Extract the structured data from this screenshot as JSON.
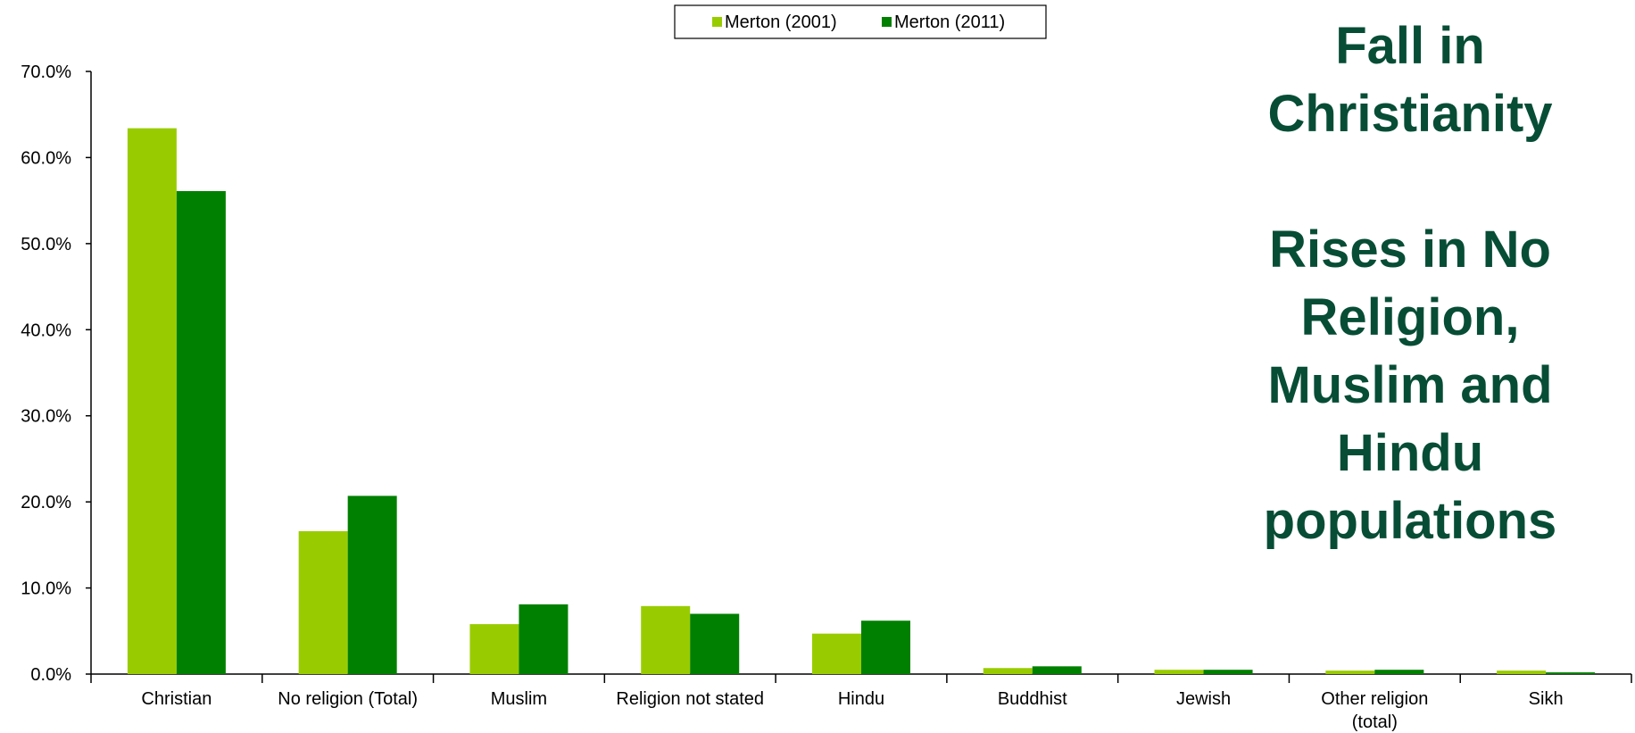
{
  "headline": {
    "line1": "Fall in",
    "line2": "Christianity",
    "line3": "Rises in No",
    "line4": "Religion,",
    "line5": "Muslim and",
    "line6": "Hindu",
    "line7": "populations"
  },
  "chart_data": {
    "type": "bar",
    "categories": [
      [
        "Christian"
      ],
      [
        "No religion (Total)"
      ],
      [
        "Muslim"
      ],
      [
        "Religion not stated"
      ],
      [
        "Hindu"
      ],
      [
        "Buddhist"
      ],
      [
        "Jewish"
      ],
      [
        "Other religion",
        "(total)"
      ],
      [
        "Sikh"
      ]
    ],
    "series": [
      {
        "name": "Merton (2001)",
        "color": "#99cc00",
        "values": [
          63.4,
          16.6,
          5.8,
          7.9,
          4.7,
          0.7,
          0.5,
          0.4,
          0.4
        ]
      },
      {
        "name": "Merton (2011)",
        "color": "#008000",
        "values": [
          56.1,
          20.7,
          8.1,
          7.0,
          6.2,
          0.9,
          0.5,
          0.5,
          0.2
        ]
      }
    ],
    "yticks": [
      "0.0%",
      "10.0%",
      "20.0%",
      "30.0%",
      "40.0%",
      "50.0%",
      "60.0%",
      "70.0%"
    ],
    "ylim": [
      0,
      70
    ],
    "legend_position": "top-center",
    "grid": false
  }
}
